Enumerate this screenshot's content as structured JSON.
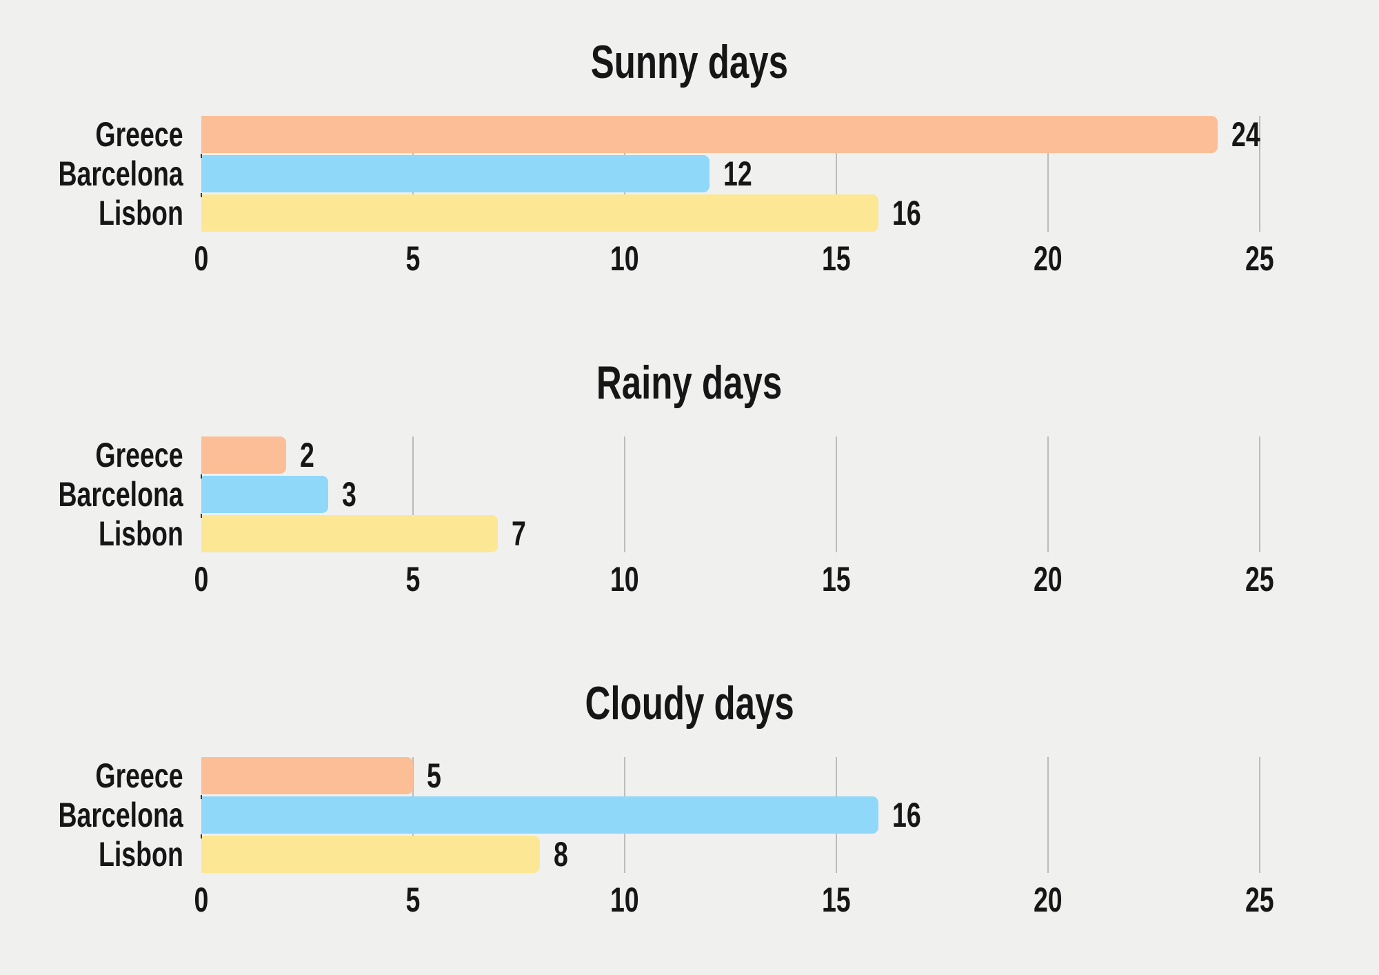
{
  "page": {
    "background_color": "#f0f0ef",
    "text_color": "#161616",
    "gridline_color": "#bcbcbc"
  },
  "chart_data": [
    {
      "type": "bar",
      "orientation": "horizontal",
      "title": "Sunny days",
      "categories": [
        "Greece",
        "Barcelona",
        "Lisbon"
      ],
      "values": [
        24,
        12,
        16
      ],
      "xticks": [
        0,
        5,
        10,
        15,
        20,
        25
      ],
      "xlim": [
        0,
        25
      ],
      "bar_colors": [
        "#fbbe96",
        "#90d8fa",
        "#fce795"
      ],
      "grid": "vertical-gridlines-at-ticks",
      "legend": "none",
      "value_labels": true
    },
    {
      "type": "bar",
      "orientation": "horizontal",
      "title": "Rainy days",
      "categories": [
        "Greece",
        "Barcelona",
        "Lisbon"
      ],
      "values": [
        2,
        3,
        7
      ],
      "xticks": [
        0,
        5,
        10,
        15,
        20,
        25
      ],
      "xlim": [
        0,
        25
      ],
      "bar_colors": [
        "#fbbe96",
        "#90d8fa",
        "#fce795"
      ],
      "grid": "vertical-gridlines-at-ticks",
      "legend": "none",
      "value_labels": true
    },
    {
      "type": "bar",
      "orientation": "horizontal",
      "title": "Cloudy days",
      "categories": [
        "Greece",
        "Barcelona",
        "Lisbon"
      ],
      "values": [
        5,
        16,
        8
      ],
      "xticks": [
        0,
        5,
        10,
        15,
        20,
        25
      ],
      "xlim": [
        0,
        25
      ],
      "bar_colors": [
        "#fbbe96",
        "#90d8fa",
        "#fce795"
      ],
      "grid": "vertical-gridlines-at-ticks",
      "legend": "none",
      "value_labels": true
    }
  ]
}
